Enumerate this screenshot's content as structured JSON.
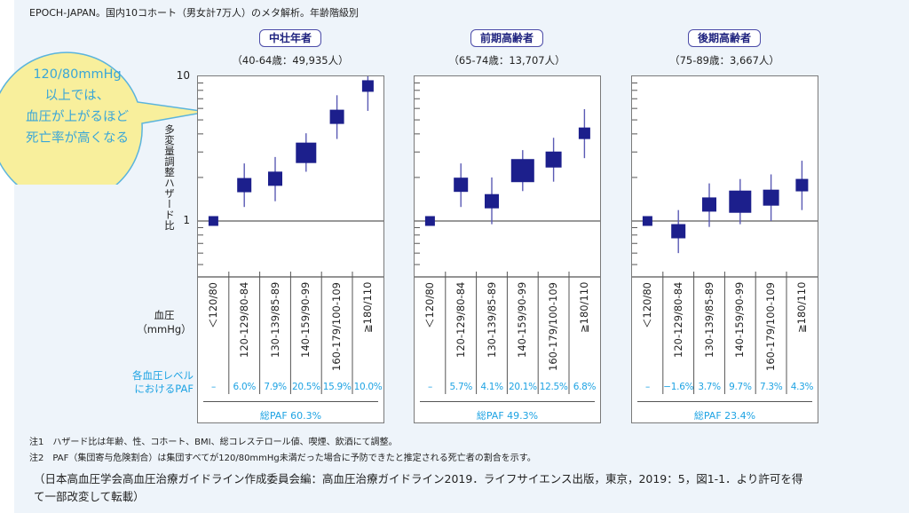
{
  "figure_title": "EPOCH-JAPAN。国内10コホート（男女計7万人）のメタ解析。年齢階級別",
  "callout": {
    "lines": [
      "120/80mmHg",
      "以上では、",
      "血圧が上がるほど",
      "死亡率が高くなる"
    ],
    "fill": "#f8ef9c",
    "stroke": "#5bb4dc",
    "text_color": "#3aa6d8"
  },
  "y_axis": {
    "label": "多変量調整ハザード比",
    "scale": "log",
    "tick_labels": [
      "10",
      "1"
    ],
    "ylim": [
      0.4,
      10
    ]
  },
  "row_labels": {
    "bp": [
      "血圧",
      "（mmHg）"
    ],
    "paf": [
      "各血圧レベル",
      "におけるPAF"
    ]
  },
  "colors": {
    "marker": "#1c1f8c",
    "paf_text": "#1ea3e3",
    "pill_border": "#4b4ba8",
    "background": "#eef4fa"
  },
  "chart_data": [
    {
      "type": "scatter",
      "title": "中壮年者",
      "subtitle": "（40-64歳：49,935人）",
      "categories": [
        "＜120/80",
        "120-129/80-84",
        "130-139/85-89",
        "140-159/90-99",
        "160-179/100-109",
        "≧180/110"
      ],
      "hr": [
        1.0,
        1.77,
        1.96,
        2.96,
        5.25,
        8.57
      ],
      "ci_low": [
        null,
        1.25,
        1.37,
        2.19,
        3.69,
        5.77
      ],
      "ci_high": [
        null,
        2.5,
        2.77,
        4.04,
        7.4,
        12.6
      ],
      "paf": [
        "–",
        "6.0%",
        "7.9%",
        "20.5%",
        "15.9%",
        "10.0%"
      ],
      "total_paf": "総PAF 60.3%"
    },
    {
      "type": "scatter",
      "title": "前期高齢者",
      "subtitle": "（65-74歳：13,707人）",
      "categories": [
        "＜120/80",
        "120-129/80-84",
        "130-139/85-89",
        "140-159/90-99",
        "160-179/100-109",
        "≧180/110"
      ],
      "hr": [
        1.0,
        1.78,
        1.37,
        2.23,
        2.66,
        4.04
      ],
      "ci_low": [
        null,
        1.25,
        0.95,
        1.61,
        1.87,
        2.72
      ],
      "ci_high": [
        null,
        2.5,
        2.0,
        3.09,
        3.76,
        5.93
      ],
      "paf": [
        "–",
        "5.7%",
        "4.1%",
        "20.1%",
        "12.5%",
        "6.8%"
      ],
      "total_paf": "総PAF 49.3%"
    },
    {
      "type": "scatter",
      "title": "後期高齢者",
      "subtitle": "（75-89歳：3,667人）",
      "categories": [
        "＜120/80",
        "120-129/80-84",
        "130-139/85-89",
        "140-159/90-99",
        "160-179/100-109",
        "≧180/110"
      ],
      "hr": [
        1.0,
        0.85,
        1.3,
        1.36,
        1.45,
        1.77
      ],
      "ci_low": [
        null,
        0.6,
        0.91,
        0.95,
        1.0,
        1.19
      ],
      "ci_high": [
        null,
        1.19,
        1.82,
        1.95,
        2.1,
        2.61
      ],
      "paf": [
        "–",
        "−1.6%",
        "3.7%",
        "9.7%",
        "7.3%",
        "4.3%"
      ],
      "total_paf": "総PAF 23.4%"
    }
  ],
  "notes": [
    "注1　ハザード比は年齢、性、コホート、BMI、総コレステロール値、喫煙、飲酒にて調整。",
    "注2　PAF（集団寄与危険割合）は集団すべてが120/80mmHg未満だった場合に予防できたと推定される死亡者の割合を示す。"
  ],
  "citation": [
    "（日本高血圧学会高血圧治療ガイドライン作成委員会編：高血圧治療ガイドライン2019．ライフサイエンス出版，東京，2019：5，図1-1．より許可を得",
    "て一部改変して転載）"
  ]
}
